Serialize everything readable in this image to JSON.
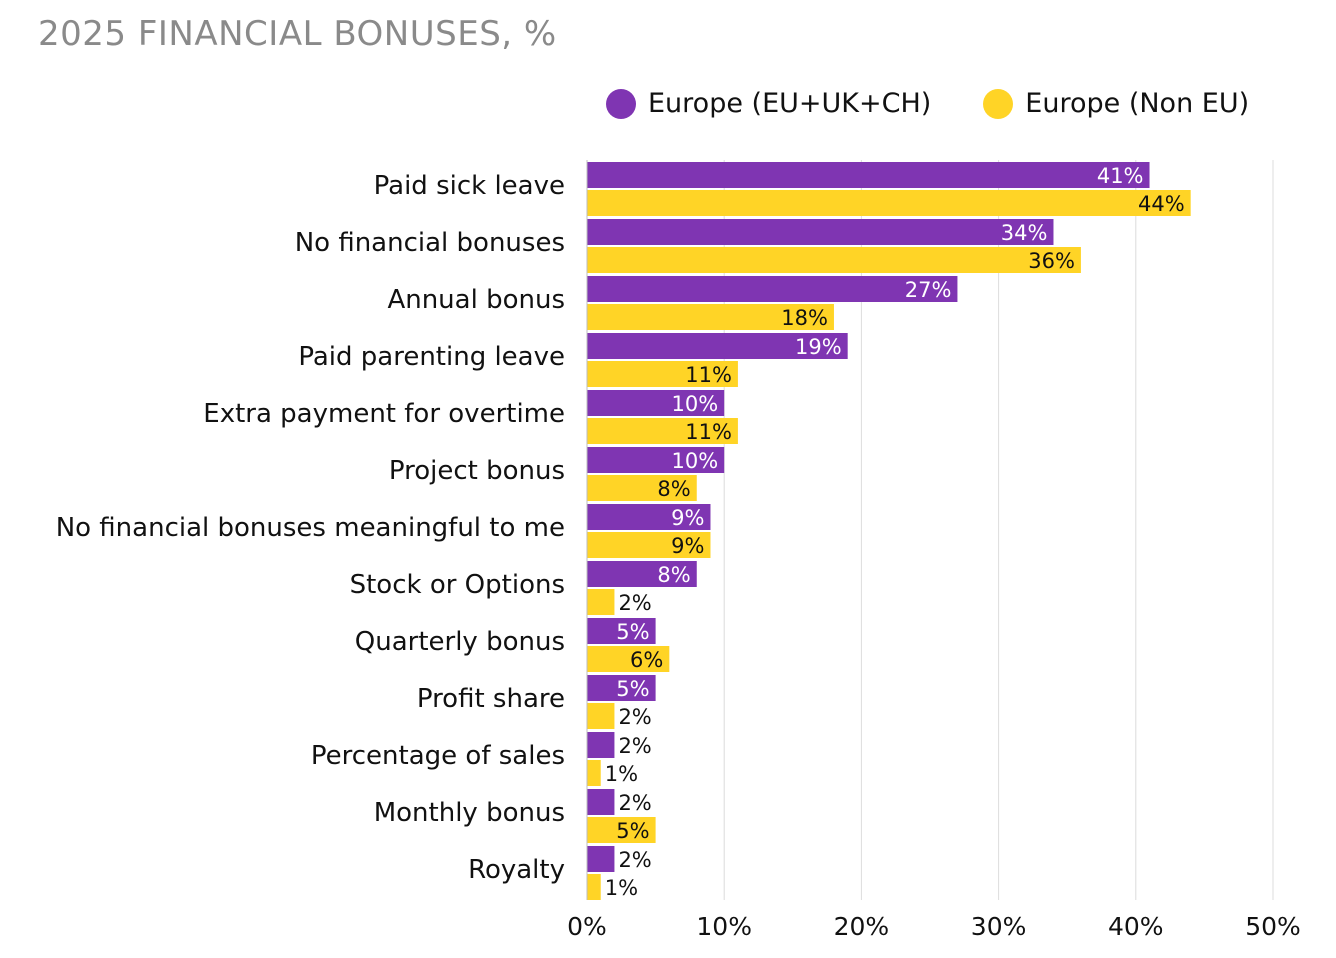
{
  "title": "2025 FINANCIAL BONUSES, %",
  "legend": [
    {
      "label": "Europe (EU+UK+CH)",
      "color": "#7f35b2"
    },
    {
      "label": "Europe (Non EU)",
      "color": "#ffd426"
    }
  ],
  "chart_data": {
    "type": "bar",
    "orientation": "horizontal",
    "title": "2025 FINANCIAL BONUSES, %",
    "xlabel": "",
    "ylabel": "",
    "xlim": [
      0,
      50
    ],
    "xticks": [
      "0%",
      "10%",
      "20%",
      "30%",
      "40%",
      "50%"
    ],
    "grid": true,
    "legend_position": "top-right",
    "categories": [
      "Paid sick leave",
      "No financial bonuses",
      "Annual bonus",
      "Paid parenting leave",
      "Extra payment for overtime",
      "Project bonus",
      "No financial bonuses meaningful to me",
      "Stock or Options",
      "Quarterly bonus",
      "Profit share",
      "Percentage of sales",
      "Monthly bonus",
      "Royalty"
    ],
    "series": [
      {
        "name": "Europe (EU+UK+CH)",
        "color": "#7f35b2",
        "values": [
          41,
          34,
          27,
          19,
          10,
          10,
          9,
          8,
          5,
          5,
          2,
          2,
          2
        ]
      },
      {
        "name": "Europe (Non EU)",
        "color": "#ffd426",
        "values": [
          44,
          36,
          18,
          11,
          11,
          8,
          9,
          2,
          6,
          2,
          1,
          5,
          1
        ]
      }
    ]
  }
}
